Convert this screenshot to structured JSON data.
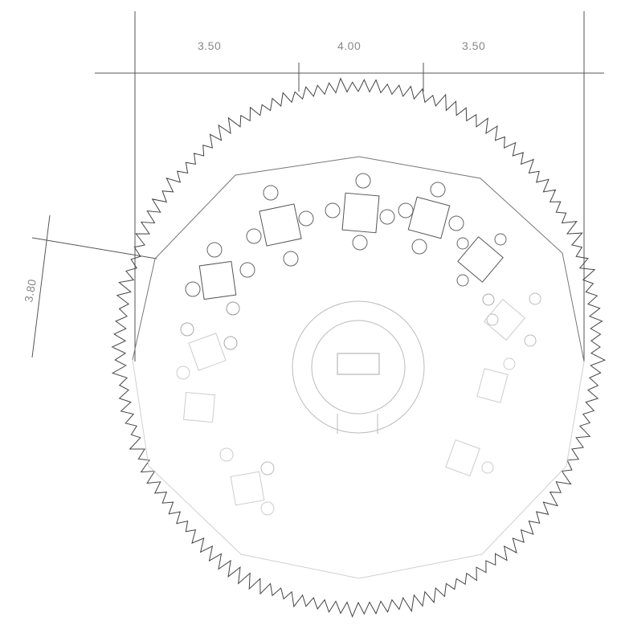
{
  "dimensions": {
    "top": [
      "3.50",
      "4.00",
      "3.50"
    ],
    "left": "3.80"
  },
  "colors": {
    "line": "#555555",
    "faded": "#bbbbbb"
  }
}
